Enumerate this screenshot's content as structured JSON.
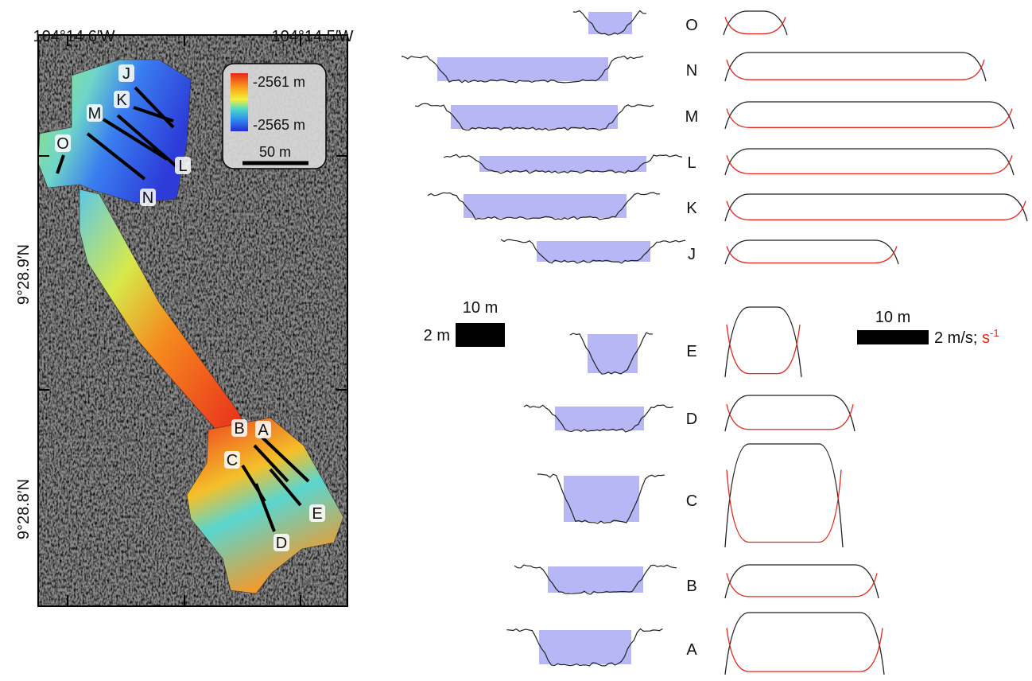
{
  "map": {
    "x_labels": [
      "104°14.6′W",
      "104°14.5′W"
    ],
    "y_labels": [
      "9°28.9′N",
      "9°28.8′N"
    ],
    "legend": {
      "top_label": "-2561 m",
      "bottom_label": "-2565 m",
      "scale_label": "50 m"
    },
    "section_labels": [
      "J",
      "K",
      "M",
      "L",
      "O",
      "N",
      "B",
      "A",
      "C",
      "E",
      "D"
    ]
  },
  "profiles": {
    "upper_labels": [
      "O",
      "N",
      "M",
      "L",
      "K",
      "J"
    ],
    "lower_labels": [
      "E",
      "D",
      "C",
      "B",
      "A"
    ]
  },
  "scale_bars": {
    "left_width": "10 m",
    "left_height": "2 m",
    "right_width": "10 m",
    "right_unit": "2 m/s;",
    "right_unit_red": "s",
    "right_unit_exp": "-1"
  }
}
